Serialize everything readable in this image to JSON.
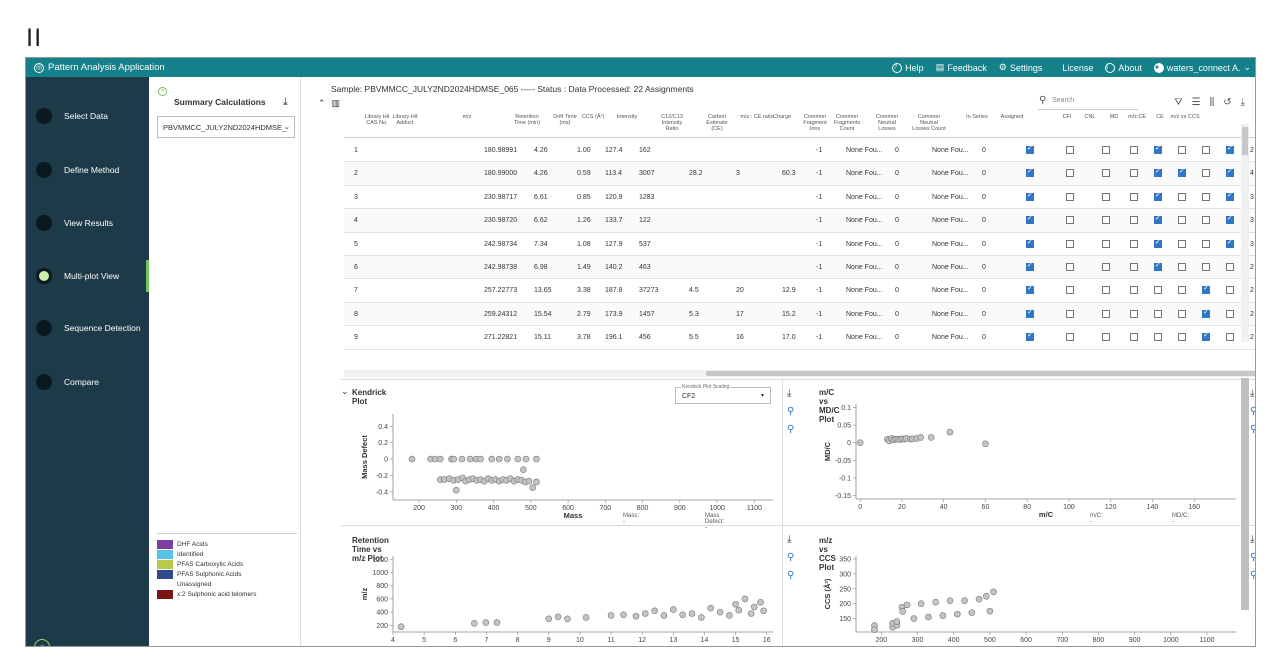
{
  "pause_glyph": "II",
  "app": {
    "title": "Pattern Analysis Application",
    "logo_icon": "target-logo-icon"
  },
  "topbar": {
    "help": "Help",
    "feedback": "Feedback",
    "settings": "Settings",
    "license": "License",
    "about": "About",
    "user": "waters_connect A."
  },
  "nav": {
    "items": [
      {
        "label": "Select Data",
        "active": false
      },
      {
        "label": "Define Method",
        "active": false
      },
      {
        "label": "View Results",
        "active": false
      },
      {
        "label": "Multi-plot View",
        "active": true
      },
      {
        "label": "Sequence Detection",
        "active": false
      },
      {
        "label": "Compare",
        "active": false
      }
    ]
  },
  "summary": {
    "title": "Summary Calculations",
    "selected": "PBVMMCC_JULY2ND2024HDMSE_",
    "legend": [
      {
        "label": "DHF Acids",
        "color": "#7a3fa0"
      },
      {
        "label": "Identified",
        "color": "#58c3e8"
      },
      {
        "label": "PFAS Carboxylic Acids",
        "color": "#b9c94a"
      },
      {
        "label": "PFAS Sulphonic Acids",
        "color": "#2f4a8c"
      },
      {
        "label": "Unassigned",
        "color": "#ffffff"
      },
      {
        "label": "x:2 Sulphonic acid telomers",
        "color": "#7b1515"
      }
    ]
  },
  "sample": {
    "header": "Sample: PBVMMCC_JULY2ND2024HDMSE_065 ----- Status : Data Processed: 22 Assignments"
  },
  "search": {
    "placeholder": "Search"
  },
  "table": {
    "columns": [
      "Library Hit CAS No.",
      "Library Hit Adduct",
      "m/z",
      "Retention Time (min)",
      "Drift Time (ms)",
      "CCS (Å²)",
      "Intensity",
      "C12/C13 Intensity Ratio",
      "Carbon Estimate (CE)",
      "m/z : CE ratio",
      "Charge",
      "Common Fragment Ions",
      "Common Fragments Count",
      "Common Neutral Losses",
      "Common Neutral Losses Count",
      "In Series",
      "Assigned",
      "CFI",
      "CNL",
      "MD",
      "m/z:CE",
      "CE",
      "m/z vs CCS",
      ""
    ],
    "rows": [
      {
        "n": "1",
        "mz": "180.98991",
        "rt": "4.26",
        "dt": "1.00",
        "ccs": "127.4",
        "int": "162",
        "ratio": "",
        "ce": "",
        "mzce": "",
        "charge": "-1",
        "cfi": "None Fou...",
        "cfc": "0",
        "cnl": "None Fou...",
        "cnlc": "0",
        "checks": [
          1,
          0,
          0,
          0,
          1,
          0,
          0,
          1
        ],
        "last": "2"
      },
      {
        "n": "2",
        "mz": "180.99000",
        "rt": "4.26",
        "dt": "0.59",
        "ccs": "113.4",
        "int": "3007",
        "ratio": "28.2",
        "ce": "3",
        "mzce": "60.3",
        "charge": "-1",
        "cfi": "None Fou...",
        "cfc": "0",
        "cnl": "None Fou...",
        "cnlc": "0",
        "checks": [
          1,
          0,
          0,
          0,
          1,
          1,
          0,
          1
        ],
        "last": "4"
      },
      {
        "n": "3",
        "mz": "230.98717",
        "rt": "6.61",
        "dt": "0.85",
        "ccs": "120.9",
        "int": "1283",
        "ratio": "",
        "ce": "",
        "mzce": "",
        "charge": "-1",
        "cfi": "None Fou...",
        "cfc": "0",
        "cnl": "None Fou...",
        "cnlc": "0",
        "checks": [
          1,
          0,
          0,
          0,
          1,
          0,
          0,
          1
        ],
        "last": "3"
      },
      {
        "n": "4",
        "mz": "230.98720",
        "rt": "6.62",
        "dt": "1.26",
        "ccs": "133.7",
        "int": "122",
        "ratio": "",
        "ce": "",
        "mzce": "",
        "charge": "-1",
        "cfi": "None Fou...",
        "cfc": "0",
        "cnl": "None Fou...",
        "cnlc": "0",
        "checks": [
          1,
          0,
          0,
          0,
          1,
          0,
          0,
          1
        ],
        "last": "3"
      },
      {
        "n": "5",
        "mz": "242.98734",
        "rt": "7.34",
        "dt": "1.08",
        "ccs": "127.9",
        "int": "537",
        "ratio": "",
        "ce": "",
        "mzce": "",
        "charge": "-1",
        "cfi": "None Fou...",
        "cfc": "0",
        "cnl": "None Fou...",
        "cnlc": "0",
        "checks": [
          1,
          0,
          0,
          0,
          1,
          0,
          0,
          1
        ],
        "last": "3"
      },
      {
        "n": "6",
        "mz": "242.98738",
        "rt": "6.98",
        "dt": "1.49",
        "ccs": "140.2",
        "int": "463",
        "ratio": "",
        "ce": "",
        "mzce": "",
        "charge": "-1",
        "cfi": "None Fou...",
        "cfc": "0",
        "cnl": "None Fou...",
        "cnlc": "0",
        "checks": [
          1,
          0,
          0,
          0,
          1,
          0,
          0,
          0
        ],
        "last": "2"
      },
      {
        "n": "7",
        "mz": "257.22773",
        "rt": "13.65",
        "dt": "3.38",
        "ccs": "187.8",
        "int": "37273",
        "ratio": "4.5",
        "ce": "20",
        "mzce": "12.9",
        "charge": "-1",
        "cfi": "None Fou...",
        "cfc": "0",
        "cnl": "None Fou...",
        "cnlc": "0",
        "checks": [
          1,
          0,
          0,
          0,
          0,
          0,
          1,
          0
        ],
        "last": "2"
      },
      {
        "n": "8",
        "mz": "259.24312",
        "rt": "15.54",
        "dt": "2.79",
        "ccs": "173.9",
        "int": "1457",
        "ratio": "5.3",
        "ce": "17",
        "mzce": "15.2",
        "charge": "-1",
        "cfi": "None Fou...",
        "cfc": "0",
        "cnl": "None Fou...",
        "cnlc": "0",
        "checks": [
          1,
          0,
          0,
          0,
          0,
          0,
          1,
          0
        ],
        "last": "2"
      },
      {
        "n": "9",
        "mz": "271.22821",
        "rt": "15.11",
        "dt": "3.78",
        "ccs": "196.1",
        "int": "456",
        "ratio": "5.5",
        "ce": "16",
        "mzce": "17.0",
        "charge": "-1",
        "cfi": "None Fou...",
        "cfc": "0",
        "cnl": "None Fou...",
        "cnlc": "0",
        "checks": [
          1,
          0,
          0,
          0,
          0,
          0,
          1,
          0
        ],
        "last": "2"
      }
    ]
  },
  "plots": {
    "kendrick": {
      "title": "Kendrick Plot",
      "scaling_label": "Kendrick Plot Scaling",
      "scaling_value": "CF2",
      "readout_mass": "Mass: -",
      "readout_md": "Mass Defect: -"
    },
    "mdc": {
      "title": "m/C vs MD/C Plot",
      "readout_a": "m/C: -",
      "readout_b": "MD/C: -"
    },
    "rt": {
      "title": "Retention Time vs m/z Plot"
    },
    "ccs": {
      "title": "m/z vs CCS Plot"
    }
  },
  "chart_data": [
    {
      "type": "scatter",
      "title": "Kendrick Plot",
      "xlabel": "Mass",
      "ylabel": "Mass Defect",
      "xlim": [
        130,
        1150
      ],
      "ylim": [
        -0.5,
        0.55
      ],
      "xticks": [
        200,
        300,
        400,
        500,
        600,
        700,
        800,
        900,
        1000,
        1100
      ],
      "yticks": [
        -0.4,
        -0.2,
        0,
        0.2,
        0.4
      ],
      "points": [
        [
          181,
          0
        ],
        [
          231,
          0
        ],
        [
          243,
          0
        ],
        [
          257,
          0
        ],
        [
          287,
          0
        ],
        [
          293,
          0
        ],
        [
          315,
          0
        ],
        [
          337,
          0
        ],
        [
          353,
          0
        ],
        [
          365,
          0
        ],
        [
          395,
          0
        ],
        [
          415,
          0
        ],
        [
          437,
          0
        ],
        [
          465,
          0
        ],
        [
          487,
          0
        ],
        [
          515,
          0
        ],
        [
          257,
          -0.25
        ],
        [
          268,
          -0.25
        ],
        [
          281,
          -0.24
        ],
        [
          293,
          -0.26
        ],
        [
          305,
          -0.25
        ],
        [
          317,
          -0.23
        ],
        [
          325,
          -0.27
        ],
        [
          335,
          -0.25
        ],
        [
          345,
          -0.24
        ],
        [
          355,
          -0.26
        ],
        [
          365,
          -0.25
        ],
        [
          375,
          -0.27
        ],
        [
          385,
          -0.24
        ],
        [
          395,
          -0.26
        ],
        [
          405,
          -0.25
        ],
        [
          415,
          -0.27
        ],
        [
          425,
          -0.25
        ],
        [
          435,
          -0.26
        ],
        [
          445,
          -0.24
        ],
        [
          455,
          -0.27
        ],
        [
          465,
          -0.25
        ],
        [
          475,
          -0.26
        ],
        [
          485,
          -0.28
        ],
        [
          495,
          -0.27
        ],
        [
          300,
          -0.38
        ],
        [
          505,
          -0.35
        ],
        [
          515,
          -0.28
        ],
        [
          480,
          -0.13
        ]
      ]
    },
    {
      "type": "scatter",
      "title": "m/C vs MD/C Plot",
      "xlabel": "m/C",
      "ylabel": "MD/C",
      "xlim": [
        -2,
        180
      ],
      "ylim": [
        -0.16,
        0.11
      ],
      "xticks": [
        0,
        20,
        40,
        60,
        80,
        100,
        120,
        140,
        160
      ],
      "yticks": [
        -0.15,
        -0.1,
        -0.05,
        0,
        0.05,
        0.1
      ],
      "points": [
        [
          0,
          0
        ],
        [
          13,
          0.01
        ],
        [
          14,
          0.005
        ],
        [
          15,
          0.012
        ],
        [
          16,
          0.008
        ],
        [
          17,
          0.01
        ],
        [
          18,
          0.01
        ],
        [
          19,
          0.009
        ],
        [
          20,
          0.011
        ],
        [
          21,
          0.01
        ],
        [
          22,
          0.012
        ],
        [
          24,
          0.01
        ],
        [
          25,
          0.011
        ],
        [
          27,
          0.012
        ],
        [
          29,
          0.015
        ],
        [
          34,
          0.015
        ],
        [
          43,
          0.03
        ],
        [
          60,
          -0.003
        ]
      ]
    },
    {
      "type": "scatter",
      "title": "Retention Time vs m/z Plot",
      "xlabel": "",
      "ylabel": "m/z",
      "xlim": [
        4,
        16.2
      ],
      "ylim": [
        100,
        1250
      ],
      "xticks": [
        4,
        5,
        6,
        7,
        8,
        9,
        10,
        11,
        12,
        13,
        14,
        15,
        16
      ],
      "yticks": [
        200,
        400,
        600,
        800,
        1000,
        1200
      ],
      "points": [
        [
          4.26,
          181
        ],
        [
          6.61,
          231
        ],
        [
          6.98,
          243
        ],
        [
          7.34,
          243
        ],
        [
          9.0,
          300
        ],
        [
          9.3,
          330
        ],
        [
          9.6,
          300
        ],
        [
          10.2,
          320
        ],
        [
          11.0,
          350
        ],
        [
          11.4,
          360
        ],
        [
          11.8,
          340
        ],
        [
          12.1,
          380
        ],
        [
          12.4,
          420
        ],
        [
          12.7,
          350
        ],
        [
          13.0,
          440
        ],
        [
          13.3,
          360
        ],
        [
          13.6,
          380
        ],
        [
          13.9,
          320
        ],
        [
          14.2,
          460
        ],
        [
          14.5,
          400
        ],
        [
          14.8,
          350
        ],
        [
          15.0,
          520
        ],
        [
          15.1,
          430
        ],
        [
          15.3,
          600
        ],
        [
          15.5,
          380
        ],
        [
          15.6,
          480
        ],
        [
          15.8,
          550
        ],
        [
          15.9,
          420
        ]
      ]
    },
    {
      "type": "scatter",
      "title": "m/z vs CCS Plot",
      "xlabel": "",
      "ylabel": "CCS (Å²)",
      "xlim": [
        130,
        1180
      ],
      "ylim": [
        105,
        360
      ],
      "xticks": [
        200,
        300,
        400,
        500,
        600,
        700,
        800,
        900,
        1000,
        1100
      ],
      "yticks": [
        150,
        200,
        250,
        300,
        350
      ],
      "points": [
        [
          181,
          127
        ],
        [
          181,
          113
        ],
        [
          231,
          121
        ],
        [
          231,
          134
        ],
        [
          243,
          128
        ],
        [
          243,
          140
        ],
        [
          257,
          188
        ],
        [
          259,
          174
        ],
        [
          271,
          196
        ],
        [
          290,
          150
        ],
        [
          310,
          200
        ],
        [
          330,
          155
        ],
        [
          350,
          205
        ],
        [
          370,
          160
        ],
        [
          390,
          210
        ],
        [
          410,
          165
        ],
        [
          430,
          210
        ],
        [
          450,
          170
        ],
        [
          470,
          215
        ],
        [
          490,
          225
        ],
        [
          500,
          175
        ],
        [
          510,
          240
        ]
      ]
    }
  ]
}
